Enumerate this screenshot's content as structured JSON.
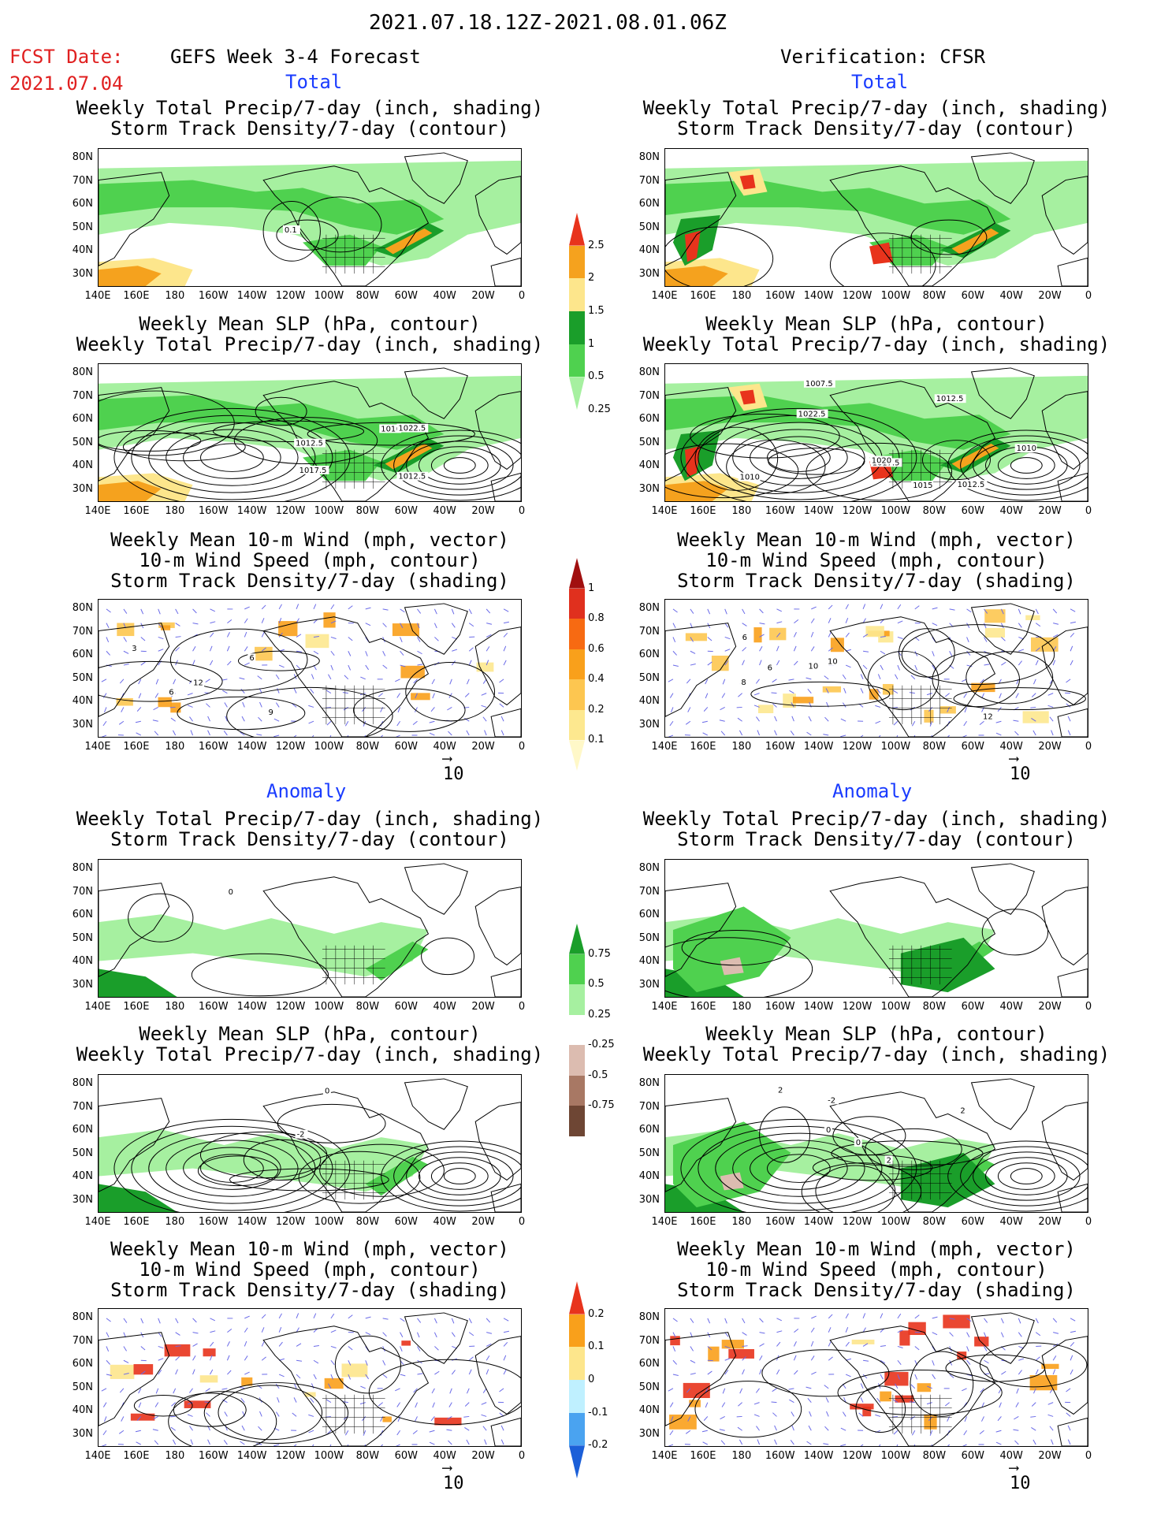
{
  "header": {
    "date_range": "2021.07.18.12Z-2021.08.01.06Z",
    "fcst_label": "FCST Date:",
    "fcst_date": "2021.07.04",
    "left_title": "GEFS Week 3-4 Forecast",
    "right_title": "Verification: CFSR",
    "total_label": "Total",
    "anomaly_label": "Anomaly"
  },
  "panel_titles": {
    "precip_storm": [
      "Weekly Total Precip/7-day (inch, shading)",
      "Storm Track Density/7-day (contour)"
    ],
    "slp_precip": [
      "Weekly Mean SLP (hPa, contour)",
      "Weekly Total Precip/7-day (inch, shading)"
    ],
    "wind_storm": [
      "Weekly Mean 10-m Wind (mph, vector)",
      "10-m Wind Speed (mph, contour)",
      "Storm Track Density/7-day (shading)"
    ]
  },
  "axes": {
    "lat_labels": [
      "80N",
      "70N",
      "60N",
      "50N",
      "40N",
      "30N"
    ],
    "lon_labels": [
      "140E",
      "160E",
      "180",
      "160W",
      "140W",
      "120W",
      "100W",
      "80W",
      "60W",
      "40W",
      "20W",
      "0"
    ]
  },
  "vector_ref": "10",
  "colorbars": {
    "total_precip": {
      "labels": [
        "2.5",
        "2",
        "1.5",
        "1",
        "0.5",
        "0.25"
      ],
      "colors": [
        "#e8331c",
        "#f5a21e",
        "#fde68c",
        "#1a9e2a",
        "#4fd14f",
        "#a6f0a0"
      ]
    },
    "total_storm": {
      "labels": [
        "1",
        "0.8",
        "0.6",
        "0.4",
        "0.2",
        "0.1"
      ],
      "colors": [
        "#a10f0f",
        "#e0301e",
        "#f76a12",
        "#f9a01b",
        "#fdc650",
        "#fde88f",
        "#fff8c8"
      ]
    },
    "anom_precip": {
      "labels": [
        "0.75",
        "0.5",
        "0.25",
        "-0.25",
        "-0.5",
        "-0.75"
      ],
      "colors": [
        "#1a9e2a",
        "#4fd14f",
        "#a6f0a0",
        "#ffffff",
        "#dcbcb0",
        "#a87864",
        "#6e4634"
      ]
    },
    "anom_storm": {
      "labels": [
        "0.2",
        "0.1",
        "0",
        "-0.1",
        "-0.2"
      ],
      "colors": [
        "#e8331c",
        "#f9a01b",
        "#fde68c",
        "#bff0ff",
        "#4aa3f0",
        "#1b5fd8"
      ]
    }
  },
  "contour_labels": {
    "slp_fcst": [
      "1010",
      "1012.5",
      "1022.5",
      "1012.5",
      "1017.5"
    ],
    "slp_verif": [
      "1010",
      "1012.5",
      "1017.5",
      "1010",
      "1020",
      "1022.5",
      "1007.5",
      "1012.5",
      "1015"
    ],
    "storm_fcst": [
      "0.1"
    ],
    "wind_fcst": [
      "3",
      "6",
      "9",
      "12",
      "6"
    ],
    "wind_verif": [
      "6",
      "10",
      "6",
      "12",
      "8",
      "10"
    ],
    "anom_storm_fcst": [
      "0"
    ],
    "anom_slp_fcst": [
      "0",
      "-2"
    ],
    "anom_slp_verif": [
      "2",
      "0",
      "-2",
      "2",
      "0",
      "2"
    ]
  }
}
